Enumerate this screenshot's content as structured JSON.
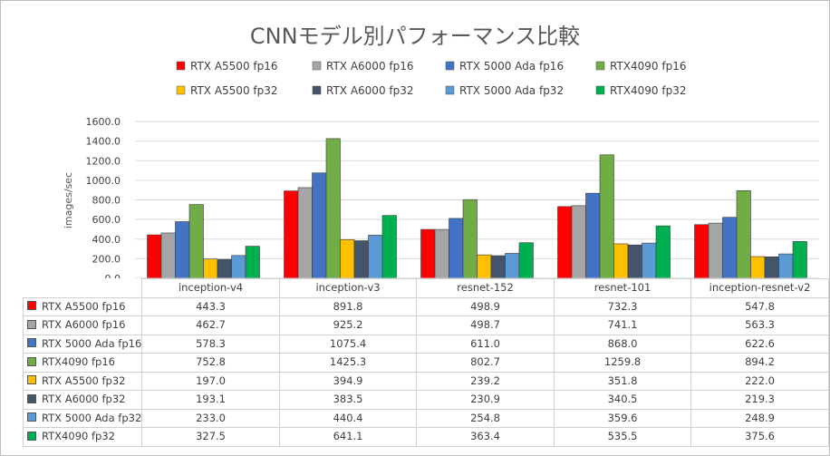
{
  "chart_data": {
    "type": "bar",
    "title": "CNNモデル別パフォーマンス比較",
    "ylabel": "images/sec",
    "xlabel": "",
    "ylim": [
      0,
      1600
    ],
    "yticks": [
      "0.0",
      "200.0",
      "400.0",
      "600.0",
      "800.0",
      "1000.0",
      "1200.0",
      "1400.0",
      "1600.0"
    ],
    "grid": true,
    "legend": "top",
    "data_table": true,
    "categories": [
      "inception-v4",
      "inception-v3",
      "resnet-152",
      "resnet-101",
      "inception-resnet-v2"
    ],
    "series": [
      {
        "name": "RTX A5500 fp16",
        "table_name": "RTX A5500 fp16",
        "color": "#ff0000",
        "values": [
          443.3,
          891.8,
          498.9,
          732.3,
          547.8
        ],
        "labels": [
          "443.3",
          "891.8",
          "498.9",
          "732.3",
          "547.8"
        ]
      },
      {
        "name": "RTX A6000 fp16",
        "table_name": "RTX A6000 fp16",
        "color": "#a5a5a5",
        "values": [
          462.7,
          925.2,
          498.7,
          741.1,
          563.3
        ],
        "labels": [
          "462.7",
          "925.2",
          "498.7",
          "741.1",
          "563.3"
        ]
      },
      {
        "name": "RTX 5000 Ada fp16",
        "table_name": "RTX 5000 Ada fp16",
        "color": "#4472c4",
        "values": [
          578.3,
          1075.4,
          611.0,
          868.0,
          622.6
        ],
        "labels": [
          "578.3",
          "1075.4",
          "611.0",
          "868.0",
          "622.6"
        ]
      },
      {
        "name": "RTX4090 fp16",
        "table_name": "RTX4090 fp16",
        "color": "#70ad47",
        "values": [
          752.8,
          1425.3,
          802.7,
          1259.8,
          894.2
        ],
        "labels": [
          "752.8",
          "1425.3",
          "802.7",
          "1259.8",
          "894.2"
        ]
      },
      {
        "name": "RTX A5500 fp32",
        "table_name": "RTX A5500 fp32",
        "color": "#ffc000",
        "values": [
          197.0,
          394.9,
          239.2,
          351.8,
          222.0
        ],
        "labels": [
          "197.0",
          "394.9",
          "239.2",
          "351.8",
          "222.0"
        ]
      },
      {
        "name": "RTX A6000 fp32",
        "table_name": "RTX A6000 fp32",
        "color": "#44546a",
        "values": [
          193.1,
          383.5,
          230.9,
          340.5,
          219.3
        ],
        "labels": [
          "193.1",
          "383.5",
          "230.9",
          "340.5",
          "219.3"
        ]
      },
      {
        "name": "RTX 5000 Ada fp32",
        "table_name": "RTX 5000 Ada fp32",
        "color": "#5b9bd5",
        "values": [
          233.0,
          440.4,
          254.8,
          359.6,
          248.9
        ],
        "labels": [
          "233.0",
          "440.4",
          "254.8",
          "359.6",
          "248.9"
        ]
      },
      {
        "name": "RTX4090 fp32",
        "table_name": "RTX4090 fp32",
        "color": "#00b050",
        "values": [
          327.5,
          641.1,
          363.4,
          535.5,
          375.6
        ],
        "labels": [
          "327.5",
          "641.1",
          "363.4",
          "535.5",
          "375.6"
        ]
      }
    ]
  }
}
